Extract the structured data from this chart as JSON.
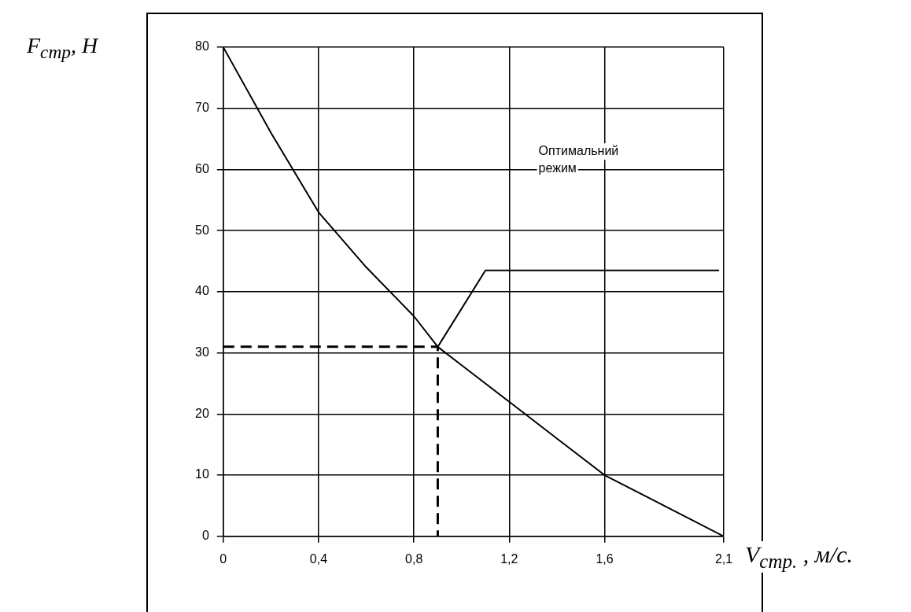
{
  "chart_data": {
    "type": "line",
    "xlabel": "V$_{стр.}$ , м/с.",
    "ylabel": "F$_{стр}$, Н",
    "xlim": [
      0,
      2.1
    ],
    "xticks": [
      0,
      {
        "value": 0.4,
        "label": "0,4"
      },
      {
        "value": 0.8,
        "label": "0,8"
      },
      {
        "value": 1.2,
        "label": "1,2"
      },
      {
        "value": 1.6,
        "label": "1,6"
      },
      {
        "value": 2.1,
        "label": "2,1"
      }
    ],
    "ylim": [
      0,
      80
    ],
    "yticks": [
      0,
      10,
      20,
      30,
      40,
      50,
      60,
      70,
      80
    ],
    "grid": true,
    "legend": false,
    "marker": "none",
    "series": [
      {
        "color": "#000000",
        "line_style": "solid",
        "x": [
          0,
          0.2,
          0.4,
          0.6,
          0.8,
          0.9,
          1.0,
          1.2,
          1.4,
          1.6,
          1.8,
          2.1
        ],
        "values": [
          80,
          66,
          53,
          44,
          36,
          31,
          28,
          22,
          16,
          10,
          6,
          0
        ]
      },
      {
        "color": "#000000",
        "line_style": "dashed",
        "x": [
          0,
          0.9,
          0.9
        ],
        "values": [
          31,
          31,
          0
        ]
      },
      {
        "color": "#000000",
        "line_style": "solid",
        "x": [
          0.9,
          1.1,
          2.08
        ],
        "values": [
          31,
          43.5,
          43.5
        ]
      }
    ],
    "annotations": [
      "Оптимальний\nрежим"
    ]
  }
}
